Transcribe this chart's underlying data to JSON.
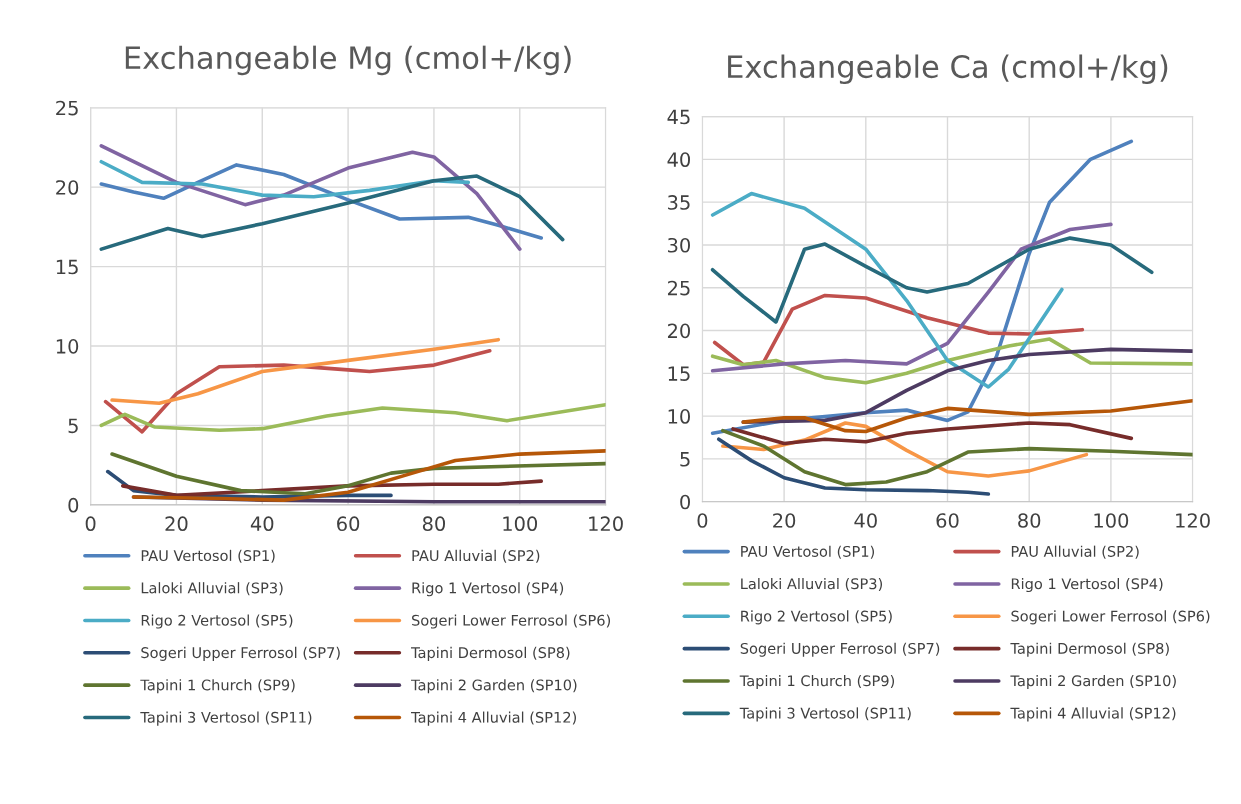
{
  "chart_data": [
    {
      "type": "line",
      "title": "Exchangeable Mg (cmol+/kg)",
      "xlim": [
        0,
        120
      ],
      "xticks": [
        0,
        20,
        40,
        60,
        80,
        100,
        120
      ],
      "ylim": [
        0,
        25
      ],
      "yticks": [
        0,
        5,
        10,
        15,
        20,
        25
      ],
      "grid": true,
      "legend": "bottom",
      "marker": "none",
      "line_style": "solid",
      "series": [
        {
          "name": "PAU Vertosol (SP1)",
          "color": "#4f81bd",
          "x": [
            2.5,
            10,
            17,
            25,
            34,
            45,
            60,
            72,
            88,
            95,
            105
          ],
          "values": [
            20.2,
            19.7,
            19.3,
            20.3,
            21.4,
            20.8,
            19.2,
            18.0,
            18.1,
            17.6,
            16.8
          ]
        },
        {
          "name": "PAU Alluvial (SP2)",
          "color": "#c0504d",
          "x": [
            3.5,
            12,
            20,
            30,
            45,
            60,
            65,
            80,
            93
          ],
          "values": [
            6.5,
            4.6,
            7.0,
            8.7,
            8.8,
            8.5,
            8.4,
            8.8,
            9.7
          ]
        },
        {
          "name": "Laloki Alluvial (SP3)",
          "color": "#9bbb59",
          "x": [
            2.5,
            8,
            15,
            30,
            40,
            55,
            68,
            85,
            97,
            120
          ],
          "values": [
            5.0,
            5.7,
            4.9,
            4.7,
            4.8,
            5.6,
            6.1,
            5.8,
            5.3,
            6.3
          ]
        },
        {
          "name": "Rigo 1 Vertosol (SP4)",
          "color": "#8064a2",
          "x": [
            2.5,
            20,
            36,
            45,
            60,
            75,
            80,
            90,
            100
          ],
          "values": [
            22.6,
            20.3,
            18.9,
            19.5,
            21.2,
            22.2,
            21.9,
            19.6,
            16.1
          ]
        },
        {
          "name": "Rigo 2 Vertosol (SP5)",
          "color": "#4bacc6",
          "x": [
            2.5,
            12,
            26,
            40,
            52,
            65,
            80,
            88
          ],
          "values": [
            21.6,
            20.3,
            20.2,
            19.5,
            19.4,
            19.8,
            20.4,
            20.3
          ]
        },
        {
          "name": "Sogeri Lower Ferrosol (SP6)",
          "color": "#f79646",
          "x": [
            5,
            16,
            25,
            40,
            60,
            80,
            95
          ],
          "values": [
            6.6,
            6.4,
            7.0,
            8.4,
            9.1,
            9.8,
            10.4
          ]
        },
        {
          "name": "Sogeri Upper Ferrosol (SP7)",
          "color": "#2c4d75",
          "x": [
            4,
            10,
            20,
            40,
            60,
            70
          ],
          "values": [
            2.1,
            0.9,
            0.6,
            0.5,
            0.6,
            0.6
          ]
        },
        {
          "name": "Tapini Dermosol (SP8)",
          "color": "#772c2a",
          "x": [
            7.5,
            20,
            40,
            60,
            80,
            95,
            105
          ],
          "values": [
            1.2,
            0.6,
            0.9,
            1.2,
            1.3,
            1.3,
            1.5
          ]
        },
        {
          "name": "Tapini 1 Church (SP9)",
          "color": "#5f7530",
          "x": [
            5,
            20,
            35,
            50,
            60,
            70,
            80,
            120
          ],
          "values": [
            3.2,
            1.8,
            0.9,
            0.7,
            1.2,
            2.0,
            2.3,
            2.6
          ]
        },
        {
          "name": "Tapini 2 Garden (SP10)",
          "color": "#4d3b62",
          "x": [
            10,
            40,
            80,
            120
          ],
          "values": [
            0.5,
            0.3,
            0.2,
            0.2
          ]
        },
        {
          "name": "Tapini 3 Vertosol (SP11)",
          "color": "#276a7c",
          "x": [
            2.5,
            18,
            26,
            40,
            60,
            80,
            90,
            100,
            110
          ],
          "values": [
            16.1,
            17.4,
            16.9,
            17.7,
            19.0,
            20.4,
            20.7,
            19.4,
            16.7
          ]
        },
        {
          "name": "Tapini 4 Alluvial (SP12)",
          "color": "#b65708",
          "x": [
            10,
            30,
            45,
            60,
            75,
            85,
            100,
            120
          ],
          "values": [
            0.5,
            0.4,
            0.3,
            0.8,
            2.0,
            2.8,
            3.2,
            3.4
          ]
        }
      ]
    },
    {
      "type": "line",
      "title": "Exchangeable Ca (cmol+/kg)",
      "xlim": [
        0,
        120
      ],
      "xticks": [
        0,
        20,
        40,
        60,
        80,
        100,
        120
      ],
      "ylim": [
        0,
        45
      ],
      "yticks": [
        0,
        5,
        10,
        15,
        20,
        25,
        30,
        35,
        40,
        45
      ],
      "grid": true,
      "legend": "bottom",
      "marker": "none",
      "line_style": "solid",
      "series": [
        {
          "name": "PAU Vertosol (SP1)",
          "color": "#4f81bd",
          "x": [
            2.5,
            20,
            40,
            50,
            60,
            65,
            72,
            80,
            85,
            95,
            105
          ],
          "values": [
            8.0,
            9.5,
            10.4,
            10.7,
            9.5,
            10.5,
            17,
            29,
            35,
            40,
            42.1
          ]
        },
        {
          "name": "PAU Alluvial (SP2)",
          "color": "#c0504d",
          "x": [
            3,
            10,
            15,
            22,
            30,
            40,
            55,
            70,
            80,
            93
          ],
          "values": [
            18.6,
            16.0,
            16.3,
            22.5,
            24.1,
            23.8,
            21.5,
            19.7,
            19.6,
            20.1
          ]
        },
        {
          "name": "Laloki Alluvial (SP3)",
          "color": "#9bbb59",
          "x": [
            2.5,
            10,
            18,
            30,
            40,
            50,
            60,
            75,
            85,
            95,
            120
          ],
          "values": [
            17.0,
            16.0,
            16.5,
            14.5,
            13.9,
            15.0,
            16.5,
            18.2,
            19.0,
            16.2,
            16.1
          ]
        },
        {
          "name": "Rigo 1 Vertosol (SP4)",
          "color": "#8064a2",
          "x": [
            2.5,
            20,
            35,
            50,
            60,
            70,
            78,
            90,
            100
          ],
          "values": [
            15.3,
            16.1,
            16.5,
            16.1,
            18.5,
            24.5,
            29.5,
            31.8,
            32.4
          ]
        },
        {
          "name": "Rigo 2 Vertosol (SP5)",
          "color": "#4bacc6",
          "x": [
            2.5,
            12,
            25,
            40,
            50,
            60,
            70,
            75,
            88
          ],
          "values": [
            33.5,
            36.0,
            34.3,
            29.5,
            23.5,
            16.5,
            13.4,
            15.5,
            24.8
          ]
        },
        {
          "name": "Sogeri Lower Ferrosol (SP6)",
          "color": "#f79646",
          "x": [
            5,
            15,
            25,
            35,
            40,
            50,
            60,
            70,
            80,
            94
          ],
          "values": [
            6.5,
            6.1,
            7.2,
            9.2,
            8.8,
            6.0,
            3.5,
            3.0,
            3.6,
            5.5
          ]
        },
        {
          "name": "Sogeri Upper Ferrosol (SP7)",
          "color": "#2c4d75",
          "x": [
            4,
            12,
            20,
            30,
            40,
            55,
            65,
            70
          ],
          "values": [
            7.3,
            4.8,
            2.8,
            1.6,
            1.4,
            1.3,
            1.1,
            0.9
          ]
        },
        {
          "name": "Tapini Dermosol (SP8)",
          "color": "#772c2a",
          "x": [
            7.5,
            20,
            30,
            40,
            50,
            60,
            80,
            90,
            105
          ],
          "values": [
            8.5,
            6.8,
            7.3,
            7.0,
            8.0,
            8.5,
            9.2,
            9.0,
            7.4
          ]
        },
        {
          "name": "Tapini 1 Church (SP9)",
          "color": "#5f7530",
          "x": [
            5,
            15,
            25,
            35,
            45,
            55,
            65,
            80,
            100,
            120
          ],
          "values": [
            8.3,
            6.5,
            3.5,
            2.0,
            2.3,
            3.5,
            5.8,
            6.2,
            5.9,
            5.5
          ]
        },
        {
          "name": "Tapini 2 Garden (SP10)",
          "color": "#4d3b62",
          "x": [
            10,
            30,
            40,
            50,
            60,
            70,
            80,
            100,
            120
          ],
          "values": [
            9.3,
            9.5,
            10.4,
            13.0,
            15.3,
            16.5,
            17.2,
            17.8,
            17.6
          ]
        },
        {
          "name": "Tapini 3 Vertosol (SP11)",
          "color": "#276a7c",
          "x": [
            2.5,
            10,
            18,
            25,
            30,
            40,
            50,
            55,
            65,
            80,
            90,
            100,
            110
          ],
          "values": [
            27.1,
            24.0,
            21.0,
            29.5,
            30.1,
            27.5,
            25.0,
            24.5,
            25.5,
            29.5,
            30.8,
            30.0,
            26.8
          ]
        },
        {
          "name": "Tapini 4 Alluvial (SP12)",
          "color": "#b65708",
          "x": [
            10,
            20,
            25,
            35,
            40,
            50,
            60,
            80,
            100,
            120
          ],
          "values": [
            9.3,
            9.8,
            9.8,
            8.3,
            8.2,
            9.8,
            10.9,
            10.2,
            10.6,
            11.8
          ]
        }
      ]
    }
  ]
}
